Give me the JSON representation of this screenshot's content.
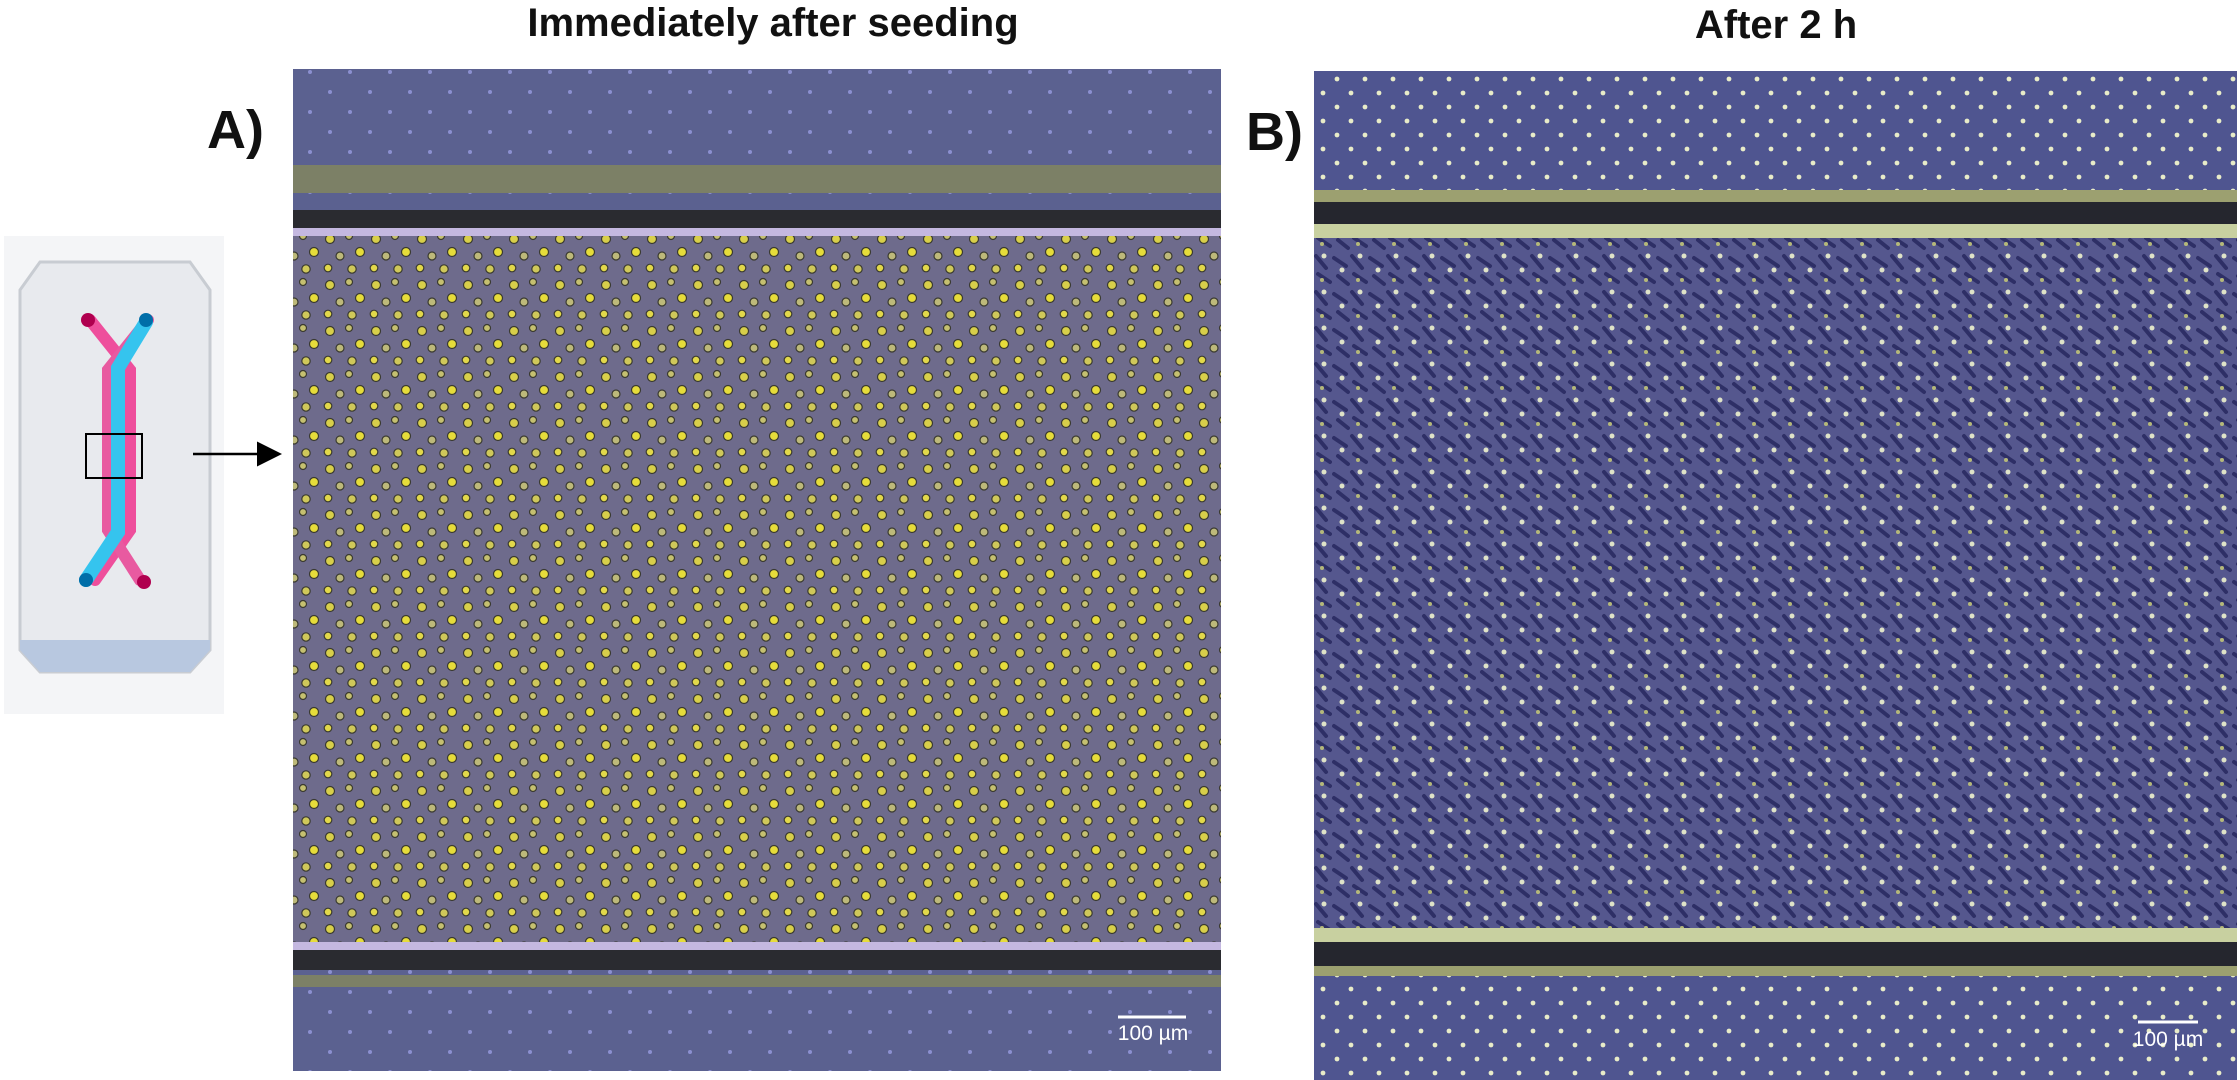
{
  "panels": [
    {
      "label": "A)",
      "title": "Immediately after seeding",
      "scale_bar": "100 µm"
    },
    {
      "label": "B)",
      "title": "After 2 h",
      "scale_bar": "100 µm"
    }
  ]
}
